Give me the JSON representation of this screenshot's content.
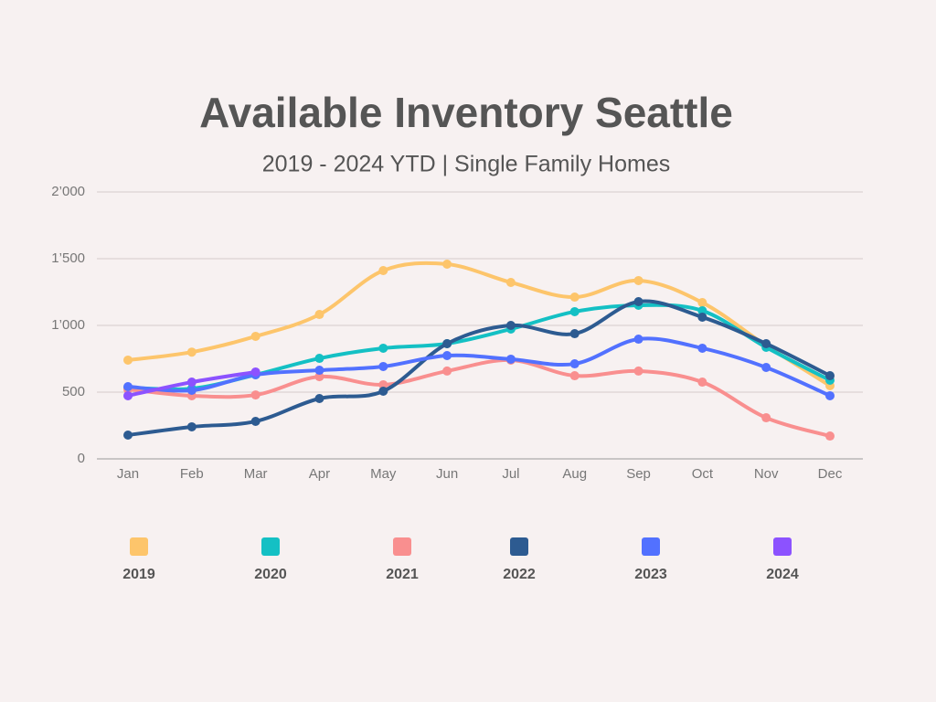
{
  "chart_data": {
    "type": "line",
    "title": "Available Inventory Seattle",
    "subtitle": "2019 - 2024 YTD | Single Family Homes",
    "categories": [
      "Jan",
      "Feb",
      "Mar",
      "Apr",
      "May",
      "Jun",
      "Jul",
      "Aug",
      "Sep",
      "Oct",
      "Nov",
      "Dec"
    ],
    "ylim": [
      0,
      2000
    ],
    "yticks": [
      0,
      500,
      {
        "value": 1000,
        "label": "1’000"
      },
      {
        "value": 1500,
        "label": "1’500"
      },
      {
        "value": 2000,
        "label": "2’000"
      }
    ],
    "grid": true,
    "legend": "bottom",
    "series": [
      {
        "name": "2019",
        "color": "#fdc56b",
        "values": [
          740,
          800,
          918,
          1082,
          1411,
          1459,
          1322,
          1212,
          1336,
          1171,
          849,
          548
        ]
      },
      {
        "name": "2020",
        "color": "#14c0c4",
        "values": [
          534,
          527,
          630,
          753,
          829,
          863,
          973,
          1103,
          1151,
          1110,
          836,
          589
        ]
      },
      {
        "name": "2021",
        "color": "#f98f8f",
        "values": [
          521,
          473,
          479,
          616,
          555,
          658,
          740,
          623,
          658,
          575,
          308,
          171
        ]
      },
      {
        "name": "2022",
        "color": "#2d5b91",
        "values": [
          178,
          240,
          281,
          452,
          507,
          863,
          1000,
          938,
          1178,
          1062,
          863,
          623
        ]
      },
      {
        "name": "2023",
        "color": "#5271ff",
        "values": [
          541,
          514,
          630,
          664,
          692,
          774,
          747,
          712,
          897,
          829,
          685,
          473
        ]
      },
      {
        "name": "2024",
        "color": "#8c52ff",
        "values": [
          473,
          575,
          651,
          null,
          null,
          null,
          null,
          null,
          null,
          null,
          null,
          null
        ]
      }
    ]
  }
}
